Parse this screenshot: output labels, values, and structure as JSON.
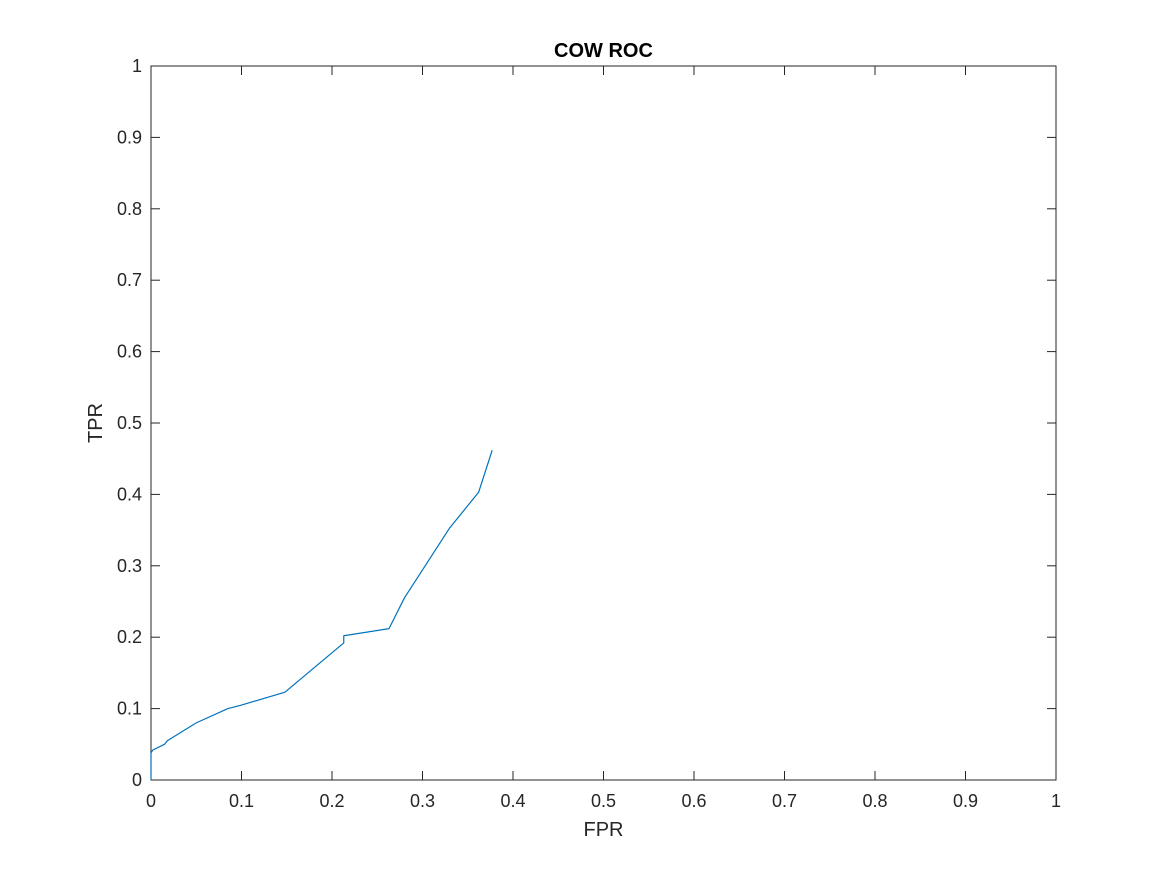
{
  "chart_data": {
    "type": "line",
    "title": "COW ROC",
    "xlabel": "FPR",
    "ylabel": "TPR",
    "xlim": [
      0,
      1
    ],
    "ylim": [
      0,
      1
    ],
    "xticks": [
      "0",
      "0.1",
      "0.2",
      "0.3",
      "0.4",
      "0.5",
      "0.6",
      "0.7",
      "0.8",
      "0.9",
      "1"
    ],
    "yticks": [
      "0",
      "0.1",
      "0.2",
      "0.3",
      "0.4",
      "0.5",
      "0.6",
      "0.7",
      "0.8",
      "0.9",
      "1"
    ],
    "grid": false,
    "legend": "none",
    "series": [
      {
        "color": "#0072BD",
        "x": [
          0,
          0,
          0.002,
          0.015,
          0.018,
          0.05,
          0.085,
          0.1,
          0.148,
          0.213,
          0.213,
          0.263,
          0.28,
          0.33,
          0.362,
          0.377
        ],
        "y": [
          0,
          0.038,
          0.042,
          0.05,
          0.055,
          0.08,
          0.1,
          0.105,
          0.123,
          0.192,
          0.202,
          0.212,
          0.255,
          0.353,
          0.403,
          0.462
        ]
      }
    ]
  }
}
